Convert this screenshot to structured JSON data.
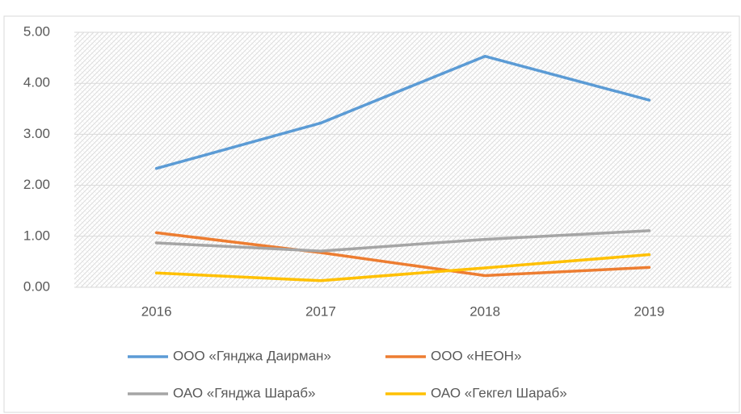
{
  "chart_data": {
    "type": "line",
    "categories": [
      "2016",
      "2017",
      "2018",
      "2019"
    ],
    "series": [
      {
        "name": "ООО «Гянджа Даирман»",
        "color": "#5b9bd5",
        "values": [
          2.33,
          3.22,
          4.53,
          3.67
        ]
      },
      {
        "name": "ООО «НЕОН»",
        "color": "#ed7d31",
        "values": [
          1.07,
          0.68,
          0.23,
          0.39
        ]
      },
      {
        "name": "ОАО «Гянджа Шараб»",
        "color": "#a5a5a5",
        "values": [
          0.87,
          0.71,
          0.94,
          1.11
        ]
      },
      {
        "name": "ОАО «Гекгел Шараб»",
        "color": "#ffc000",
        "values": [
          0.28,
          0.13,
          0.38,
          0.64
        ]
      }
    ],
    "ylim": [
      0,
      5
    ],
    "yticks": [
      {
        "value": 0,
        "label": "0.00"
      },
      {
        "value": 1,
        "label": "1.00"
      },
      {
        "value": 2,
        "label": "2.00"
      },
      {
        "value": 3,
        "label": "3.00"
      },
      {
        "value": 4,
        "label": "4.00"
      },
      {
        "value": 5,
        "label": "5.00"
      }
    ],
    "grid": true,
    "legend": "bottom"
  }
}
